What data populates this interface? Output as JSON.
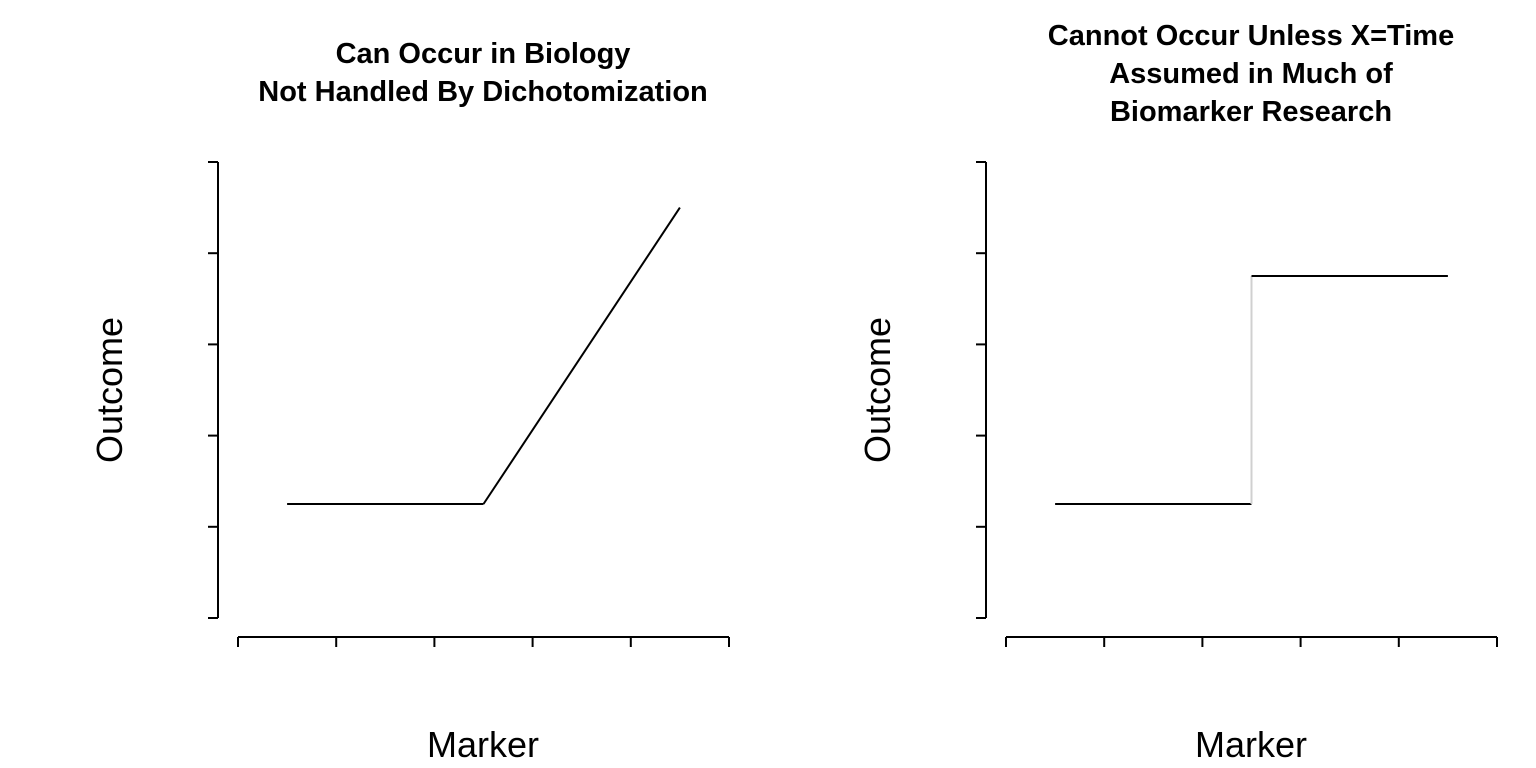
{
  "chart_data": [
    {
      "type": "line",
      "title_lines": [
        "Can Occur in Biology",
        "Not Handled By Dichotomization"
      ],
      "xlabel": "Marker",
      "ylabel": "Outcome",
      "xlim": [
        0,
        5
      ],
      "ylim": [
        0,
        5
      ],
      "x_ticks": [
        0,
        1,
        2,
        3,
        4,
        5
      ],
      "y_ticks": [
        0,
        1,
        2,
        3,
        4,
        5
      ],
      "tick_labels_shown": false,
      "series": [
        {
          "x": [
            0.5,
            2.5,
            4.5
          ],
          "y": [
            1.25,
            1.25,
            4.5
          ]
        }
      ]
    },
    {
      "type": "line",
      "title_lines": [
        "Cannot Occur Unless X=Time",
        "Assumed in Much of",
        "Biomarker Research"
      ],
      "xlabel": "Marker",
      "ylabel": "Outcome",
      "xlim": [
        0,
        5
      ],
      "ylim": [
        0,
        5
      ],
      "x_ticks": [
        0,
        1,
        2,
        3,
        4,
        5
      ],
      "y_ticks": [
        0,
        1,
        2,
        3,
        4,
        5
      ],
      "tick_labels_shown": false,
      "step": true,
      "riser_color": "#d0d0d0",
      "series": [
        {
          "x": [
            0.5,
            2.5,
            2.5,
            4.5
          ],
          "y": [
            1.25,
            1.25,
            3.75,
            3.75
          ]
        }
      ]
    }
  ]
}
